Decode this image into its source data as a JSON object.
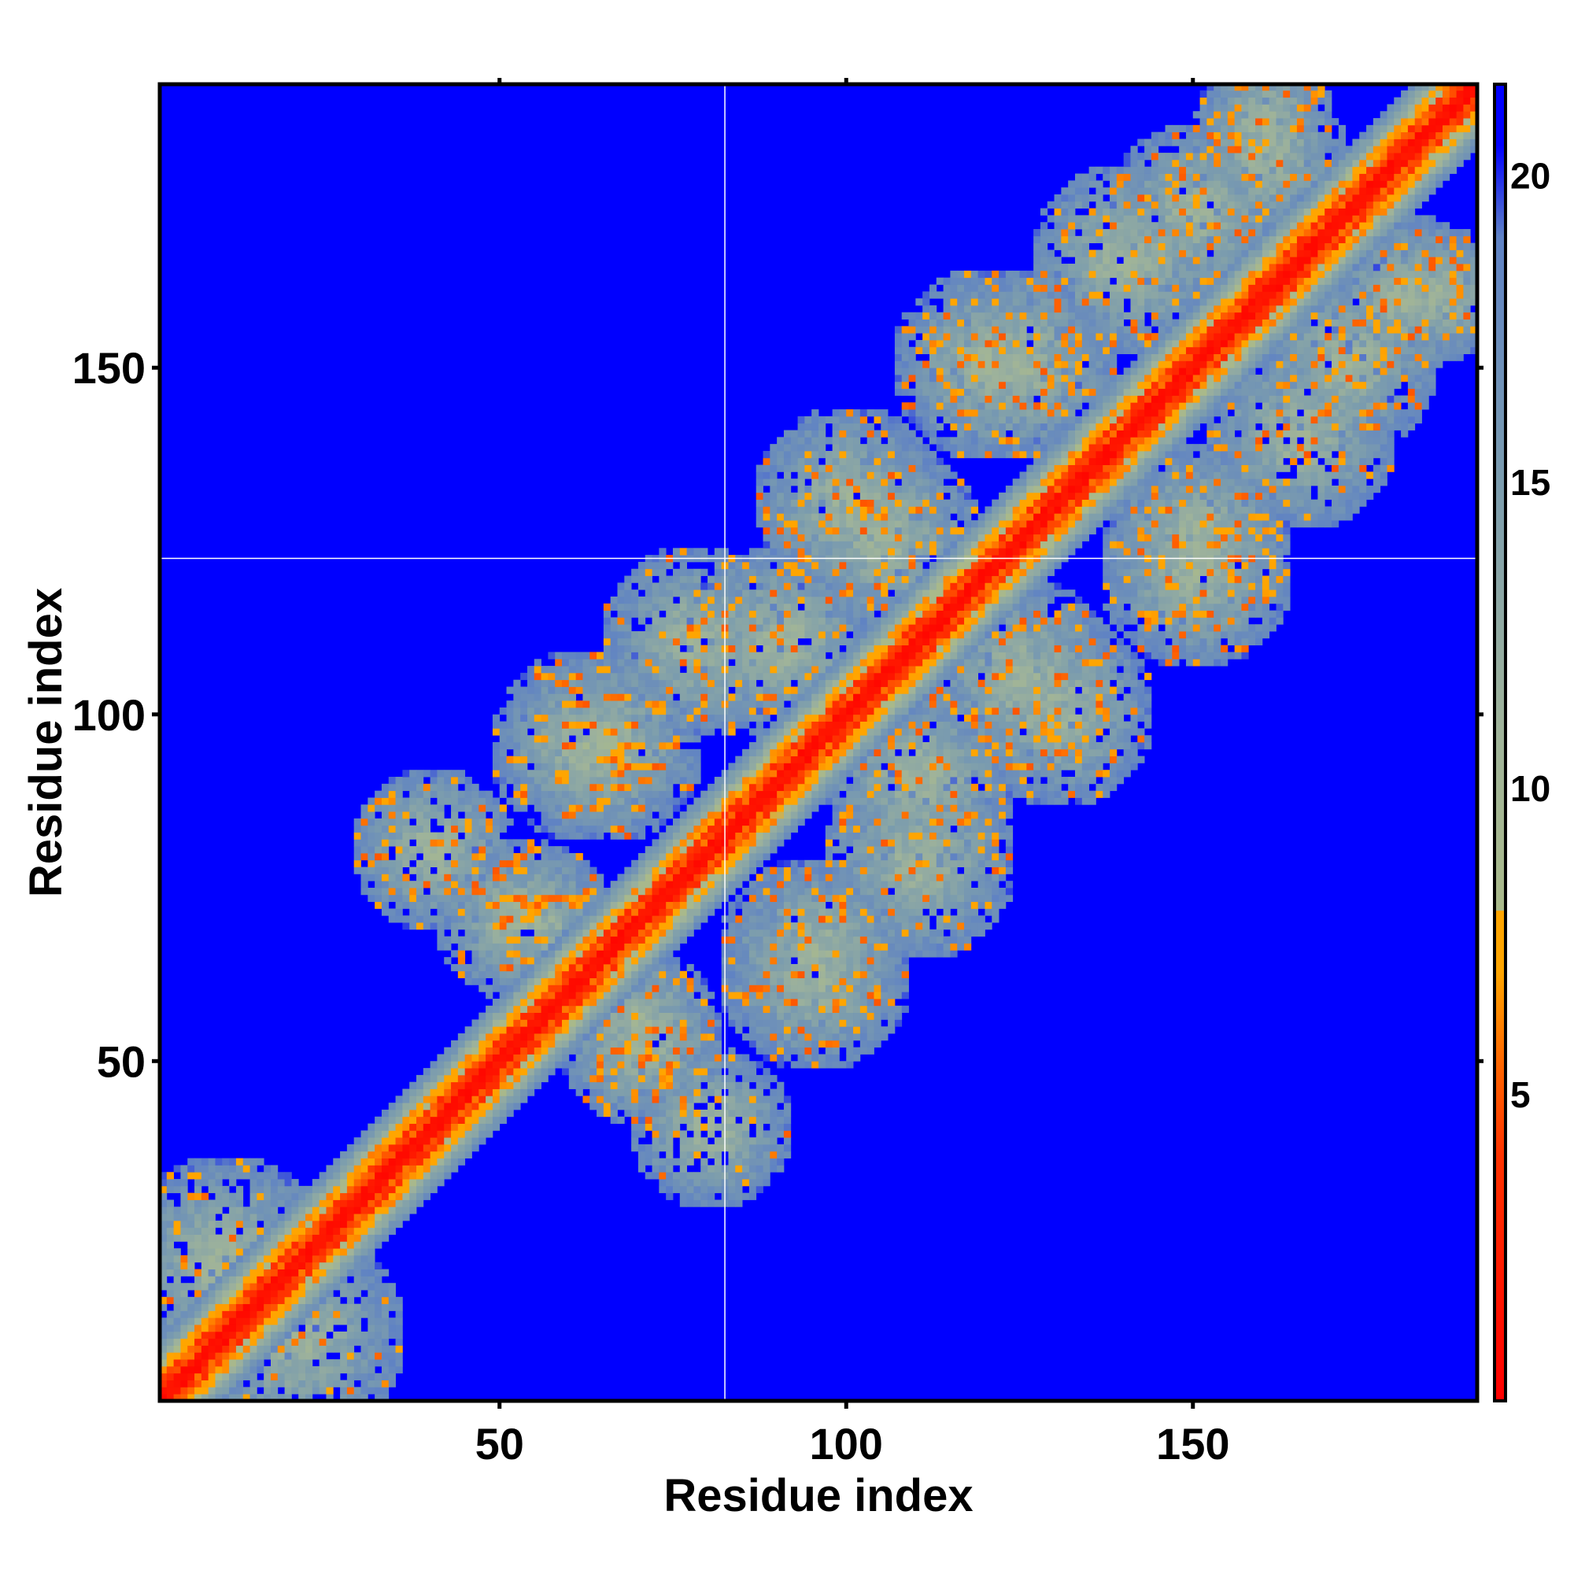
{
  "chart_data": {
    "type": "heatmap",
    "title": "",
    "xlabel": "Residue index",
    "ylabel": "Residue index",
    "n_residues": 190,
    "xlim": [
      1,
      190
    ],
    "ylim": [
      1,
      190
    ],
    "x_ticks": [
      50,
      100,
      150
    ],
    "y_ticks": [
      50,
      100,
      150
    ],
    "x_tick_labels": [
      "50",
      "100",
      "150"
    ],
    "y_tick_labels": [
      "50",
      "100",
      "150"
    ],
    "colorbar": {
      "range": [
        0,
        21.5
      ],
      "ticks": [
        5,
        10,
        15,
        20
      ],
      "tick_labels": [
        "5",
        "10",
        "15",
        "20"
      ],
      "stops": [
        {
          "value": 0,
          "color": "#ff0000"
        },
        {
          "value": 4,
          "color": "#ff3300"
        },
        {
          "value": 5.5,
          "color": "#ff6600"
        },
        {
          "value": 7,
          "color": "#ffa500"
        },
        {
          "value": 8,
          "color": "#ffa500"
        },
        {
          "value": 8.01,
          "color": "#a9b98a"
        },
        {
          "value": 11,
          "color": "#9fb39a"
        },
        {
          "value": 15,
          "color": "#7b9cae"
        },
        {
          "value": 19,
          "color": "#5f82c4"
        },
        {
          "value": 20.5,
          "color": "#0000ff"
        },
        {
          "value": 21.5,
          "color": "#0000ff"
        }
      ]
    },
    "value_meaning": "inter-residue distance; diagonal band near 0, off-diagonal contact lobes at roughly 8-19, background saturated at 21.5",
    "diagonal_band": {
      "center_value": 2,
      "half_width_residues": 9
    },
    "contact_lobes": [
      {
        "center": [
          10,
          20
        ],
        "radius": 16
      },
      {
        "center": [
          40,
          80
        ],
        "radius": 12
      },
      {
        "center": [
          52,
          70
        ],
        "radius": 12
      },
      {
        "center": [
          62,
          95
        ],
        "radius": 14
      },
      {
        "center": [
          70,
          55
        ],
        "radius": 11
      },
      {
        "center": [
          78,
          110
        ],
        "radius": 14
      },
      {
        "center": [
          95,
          65
        ],
        "radius": 14
      },
      {
        "center": [
          100,
          130
        ],
        "radius": 14
      },
      {
        "center": [
          110,
          90
        ],
        "radius": 14
      },
      {
        "center": [
          120,
          150
        ],
        "radius": 14
      },
      {
        "center": [
          125,
          105
        ],
        "radius": 14
      },
      {
        "center": [
          140,
          165
        ],
        "radius": 14
      },
      {
        "center": [
          150,
          125
        ],
        "radius": 14
      },
      {
        "center": [
          160,
          180
        ],
        "radius": 12
      },
      {
        "center": [
          172,
          150
        ],
        "radius": 13
      },
      {
        "center": [
          185,
          160
        ],
        "radius": 10
      }
    ],
    "marker_lines": {
      "x": 82,
      "y": 122,
      "color": "#ffffff"
    },
    "grid": false,
    "legend": "colorbar-right"
  }
}
